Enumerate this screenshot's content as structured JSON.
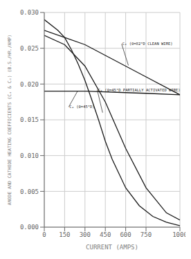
{
  "chart_data": {
    "type": "line",
    "xlabel": "CURRENT (AMPS)",
    "ylabel": "ANODE AND CATHODE HEATING COEFFICIENTS (Cₐ & Cₑ) (B.S./HR./AMP)",
    "xlim": [
      0,
      1000
    ],
    "ylim": [
      0,
      0.03
    ],
    "xticks": [
      0,
      150,
      300,
      450,
      600,
      750,
      1000
    ],
    "yticks": [
      {
        "value": 0,
        "label": "0.000"
      },
      {
        "value": 0.005,
        "label": "0.005"
      },
      {
        "value": 0.01,
        "label": "0.010"
      },
      {
        "value": 0.015,
        "label": "0.015"
      },
      {
        "value": 0.02,
        "label": "0.020"
      },
      {
        "value": 0.025,
        "label": "0.025"
      },
      {
        "value": 0.03,
        "label": "0.030"
      }
    ],
    "grid": true,
    "series": [
      {
        "color": "#1a1a1a",
        "x": [
          0,
          150,
          310,
          600,
          750,
          1000
        ],
        "values": [
          0.019,
          0.019,
          0.019,
          0.0188,
          0.0187,
          0.0185
        ]
      },
      {
        "color": "#1a1a1a",
        "x": [
          0,
          150,
          300,
          450,
          600,
          750,
          1000
        ],
        "values": [
          0.0275,
          0.0265,
          0.0255,
          0.024,
          0.0225,
          0.021,
          0.0185
        ]
      },
      {
        "color": "#1a1a1a",
        "x": [
          0,
          150,
          300,
          450,
          600,
          750,
          900,
          1000
        ],
        "values": [
          0.0268,
          0.0255,
          0.0225,
          0.0175,
          0.011,
          0.0055,
          0.002,
          0.001
        ]
      },
      {
        "color": "#1a1a1a",
        "x": [
          0,
          100,
          150,
          200,
          250,
          300,
          350,
          400,
          450,
          500,
          600,
          700,
          800,
          900,
          1000
        ],
        "values": [
          0.029,
          0.0275,
          0.0265,
          0.0248,
          0.0228,
          0.0205,
          0.0178,
          0.015,
          0.012,
          0.0095,
          0.0055,
          0.003,
          0.0015,
          0.0007,
          0.0002
        ]
      }
    ],
    "annotations": [
      {
        "text": "Cₑ (0=82°D CLEAN WIRE)",
        "xy": [
          620,
          0.0226
        ],
        "xytext": [
          570,
          0.0256
        ]
      },
      {
        "text": "Cₑ (0=45°D PARTIALLY ACTIVATED WIRE)",
        "xy": [
          430,
          0.016
        ],
        "xytext": [
          390,
          0.0192
        ]
      },
      {
        "text": "Cₐ (0=45°D)",
        "xy": [
          245,
          0.019
        ],
        "xytext": [
          180,
          0.0168
        ]
      }
    ]
  }
}
